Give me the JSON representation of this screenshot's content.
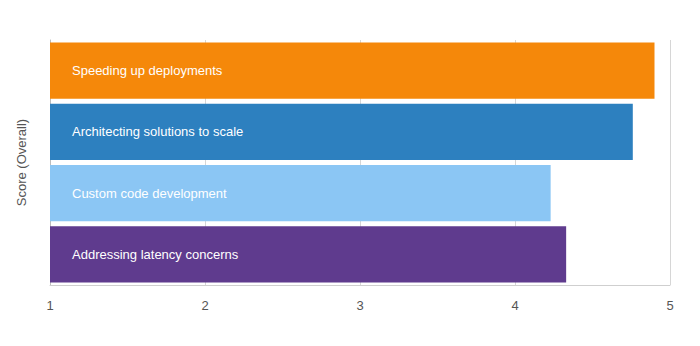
{
  "chart_data": {
    "type": "bar",
    "orientation": "horizontal",
    "y_label": "Score (Overall)",
    "categories": [
      "Speeding up deployments",
      "Architecting solutions to scale",
      "Custom code development",
      "Addressing latency concerns"
    ],
    "values": [
      4.9,
      4.76,
      4.23,
      4.33
    ],
    "colors": [
      "#f5880a",
      "#2d80bf",
      "#8bc6f4",
      "#5f3b8e"
    ],
    "xlim": [
      1,
      5
    ],
    "xticks": [
      1,
      2,
      3,
      4,
      5
    ],
    "grid": true,
    "tick_labels": "x"
  }
}
